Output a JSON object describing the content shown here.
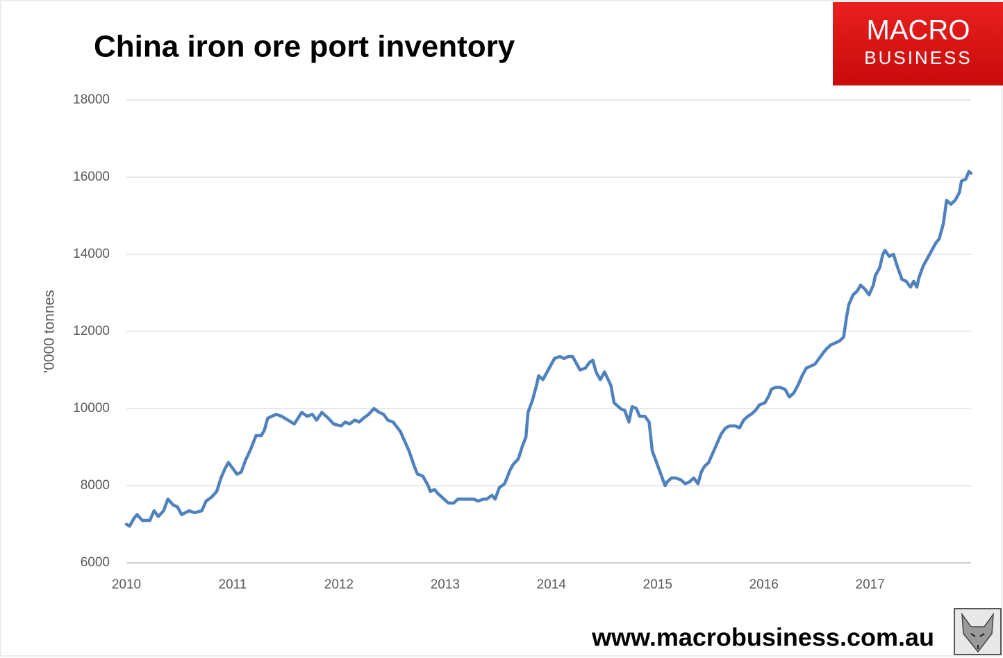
{
  "chart_data": {
    "type": "line",
    "title": "China iron ore port inventory",
    "ylabel": "'0000 tonnes",
    "brand": {
      "line1": "MACRO",
      "line2": "BUSINESS"
    },
    "source": "www.macrobusiness.com.au",
    "xlim": [
      2010,
      2017.95
    ],
    "xticks": [
      2010,
      2011,
      2012,
      2013,
      2014,
      2015,
      2016,
      2017
    ],
    "ylim": [
      6000,
      18000
    ],
    "yticks": [
      6000,
      8000,
      10000,
      12000,
      14000,
      16000,
      18000
    ],
    "grid": true,
    "x": [
      2010.0,
      2010.03,
      2010.07,
      2010.1,
      2010.15,
      2010.22,
      2010.26,
      2010.3,
      2010.35,
      2010.39,
      2010.44,
      2010.48,
      2010.52,
      2010.59,
      2010.64,
      2010.71,
      2010.75,
      2010.8,
      2010.85,
      2010.89,
      2010.93,
      2010.96,
      2011.0,
      2011.04,
      2011.08,
      2011.12,
      2011.17,
      2011.22,
      2011.27,
      2011.3,
      2011.33,
      2011.37,
      2011.41,
      2011.46,
      2011.52,
      2011.58,
      2011.65,
      2011.7,
      2011.75,
      2011.79,
      2011.84,
      2011.9,
      2011.95,
      2012.02,
      2012.06,
      2012.1,
      2012.15,
      2012.19,
      2012.23,
      2012.28,
      2012.33,
      2012.38,
      2012.42,
      2012.46,
      2012.51,
      2012.58,
      2012.62,
      2012.66,
      2012.71,
      2012.74,
      2012.79,
      2012.84,
      2012.86,
      2012.9,
      2012.93,
      2012.97,
      2013.03,
      2013.08,
      2013.12,
      2013.16,
      2013.23,
      2013.27,
      2013.31,
      2013.36,
      2013.39,
      2013.44,
      2013.47,
      2013.51,
      2013.56,
      2013.61,
      2013.64,
      2013.69,
      2013.73,
      2013.76,
      2013.78,
      2013.82,
      2013.86,
      2013.88,
      2013.92,
      2013.97,
      2014.03,
      2014.08,
      2014.12,
      2014.16,
      2014.2,
      2014.24,
      2014.27,
      2014.32,
      2014.36,
      2014.39,
      2014.42,
      2014.46,
      2014.5,
      2014.56,
      2014.59,
      2014.65,
      2014.69,
      2014.73,
      2014.76,
      2014.8,
      2014.83,
      2014.88,
      2014.92,
      2014.95,
      2014.99,
      2015.03,
      2015.07,
      2015.09,
      2015.13,
      2015.17,
      2015.22,
      2015.26,
      2015.3,
      2015.34,
      2015.38,
      2015.41,
      2015.44,
      2015.48,
      2015.52,
      2015.56,
      2015.6,
      2015.64,
      2015.68,
      2015.73,
      2015.77,
      2015.81,
      2015.85,
      2015.88,
      2015.92,
      2015.96,
      2016.01,
      2016.05,
      2016.07,
      2016.11,
      2016.15,
      2016.2,
      2016.24,
      2016.28,
      2016.32,
      2016.36,
      2016.4,
      2016.44,
      2016.48,
      2016.52,
      2016.56,
      2016.59,
      2016.63,
      2016.67,
      2016.71,
      2016.75,
      2016.78,
      2016.8,
      2016.84,
      2016.88,
      2016.91,
      2016.95,
      2016.99,
      2017.03,
      2017.05,
      2017.09,
      2017.12,
      2017.14,
      2017.18,
      2017.22,
      2017.26,
      2017.3,
      2017.34,
      2017.38,
      2017.41,
      2017.44,
      2017.46,
      2017.5,
      2017.54,
      2017.58,
      2017.62,
      2017.65,
      2017.69,
      2017.72,
      2017.76,
      2017.8,
      2017.84,
      2017.86,
      2017.9,
      2017.93,
      2017.95
    ],
    "series": [
      {
        "name": "Port inventory",
        "color": "#4f81bd",
        "values": [
          7000,
          6950,
          7150,
          7250,
          7100,
          7100,
          7350,
          7200,
          7350,
          7650,
          7500,
          7450,
          7250,
          7350,
          7300,
          7350,
          7600,
          7700,
          7850,
          8200,
          8450,
          8600,
          8450,
          8300,
          8350,
          8650,
          8950,
          9300,
          9300,
          9450,
          9750,
          9800,
          9850,
          9800,
          9700,
          9600,
          9900,
          9800,
          9850,
          9700,
          9900,
          9750,
          9600,
          9550,
          9650,
          9600,
          9700,
          9650,
          9750,
          9850,
          10000,
          9900,
          9850,
          9700,
          9650,
          9400,
          9150,
          8900,
          8500,
          8300,
          8250,
          8000,
          7850,
          7900,
          7800,
          7700,
          7550,
          7550,
          7650,
          7650,
          7650,
          7650,
          7600,
          7650,
          7650,
          7750,
          7650,
          7950,
          8050,
          8400,
          8550,
          8700,
          9050,
          9250,
          9900,
          10200,
          10600,
          10850,
          10750,
          11000,
          11300,
          11350,
          11300,
          11350,
          11350,
          11150,
          11000,
          11050,
          11200,
          11250,
          10950,
          10750,
          10950,
          10600,
          10150,
          10000,
          9950,
          9650,
          10050,
          10000,
          9800,
          9800,
          9650,
          8900,
          8600,
          8300,
          8000,
          8100,
          8200,
          8200,
          8150,
          8050,
          8100,
          8200,
          8050,
          8350,
          8500,
          8600,
          8850,
          9100,
          9350,
          9500,
          9550,
          9550,
          9500,
          9700,
          9800,
          9850,
          9950,
          10100,
          10150,
          10350,
          10500,
          10550,
          10550,
          10500,
          10300,
          10400,
          10600,
          10850,
          11050,
          11100,
          11150,
          11300,
          11450,
          11550,
          11650,
          11700,
          11750,
          11850,
          12400,
          12700,
          12950,
          13050,
          13200,
          13100,
          12950,
          13200,
          13450,
          13650,
          14000,
          14100,
          13950,
          14000,
          13650,
          13350,
          13300,
          13150,
          13300,
          13150,
          13400,
          13700,
          13900,
          14100,
          14300,
          14400,
          14800,
          15400,
          15300,
          15400,
          15600,
          15900,
          15950,
          16150,
          16100
        ]
      }
    ]
  }
}
